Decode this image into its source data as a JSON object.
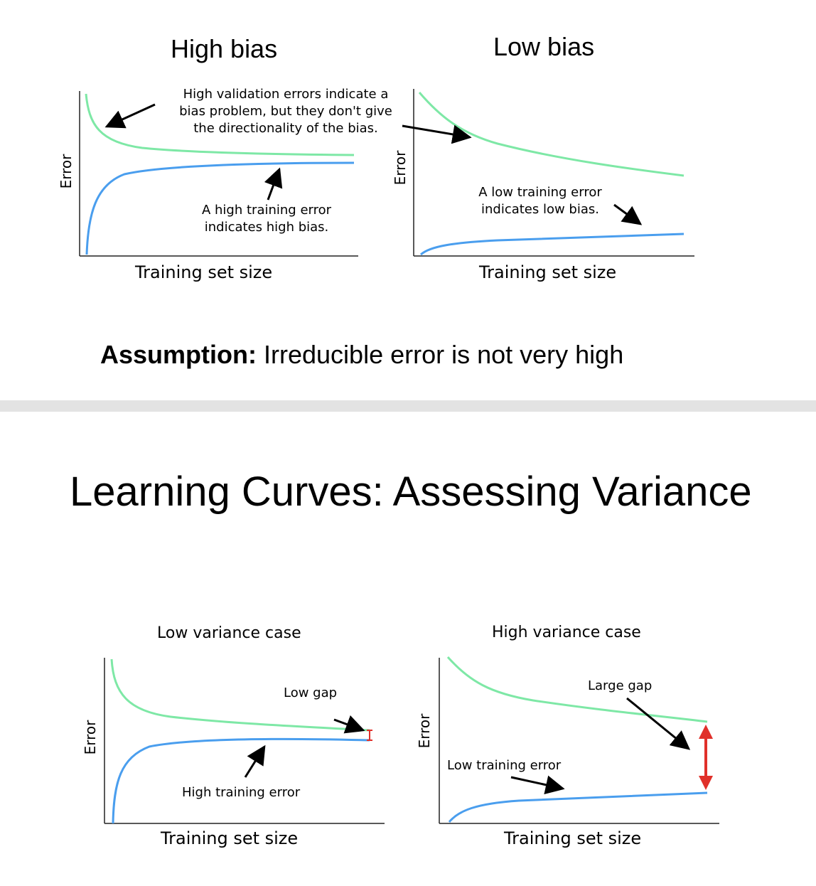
{
  "top_section": {
    "assumption_label": "Assumption:",
    "assumption_text": " Irreducible error is not very high"
  },
  "bottom_section": {
    "heading": "Learning Curves: Assessing Variance"
  },
  "colors": {
    "validation": "#7ee8a6",
    "training": "#4a9eee",
    "gap_arrow": "#e0302a",
    "axis": "#222222"
  },
  "chart_data": [
    {
      "type": "line",
      "title": "High bias",
      "xlabel": "Training set size",
      "ylabel": "Error",
      "series": [
        {
          "name": "validation",
          "values": "high, flattening"
        },
        {
          "name": "training",
          "values": "rises to meet validation"
        }
      ],
      "annotations": [
        "High validation errors indicate a bias problem, but they don't give the directionality of the bias.",
        "A high training error indicates high bias."
      ]
    },
    {
      "type": "line",
      "title": "Low bias",
      "xlabel": "Training set size",
      "ylabel": "Error",
      "annotations": [
        "A low training error indicates low bias."
      ]
    },
    {
      "type": "line",
      "title": "Low variance case",
      "xlabel": "Training set size",
      "ylabel": "Error",
      "annotations": [
        "Low gap",
        "High training error"
      ]
    },
    {
      "type": "line",
      "title": "High variance case",
      "xlabel": "Training set size",
      "ylabel": "Error",
      "annotations": [
        "Large gap",
        "Low training error"
      ]
    }
  ],
  "text": {
    "p1": {
      "title": "High bias",
      "xlabel": "Training set size",
      "ylabel": "Error",
      "note_val_1": "High validation errors indicate a",
      "note_val_2": "bias problem, but they don't give",
      "note_val_3": "the directionality of the bias.",
      "note_train_1": "A high training error",
      "note_train_2": "indicates high bias."
    },
    "p2": {
      "title": "Low bias",
      "xlabel": "Training set size",
      "ylabel": "Error",
      "note_train_1": "A low training error",
      "note_train_2": "indicates low bias."
    },
    "p3": {
      "title": "Low variance case",
      "xlabel": "Training set size",
      "ylabel": "Error",
      "note_gap": "Low gap",
      "note_train": "High training error"
    },
    "p4": {
      "title": "High variance case",
      "xlabel": "Training set size",
      "ylabel": "Error",
      "note_gap": "Large gap",
      "note_train": "Low training error"
    }
  }
}
